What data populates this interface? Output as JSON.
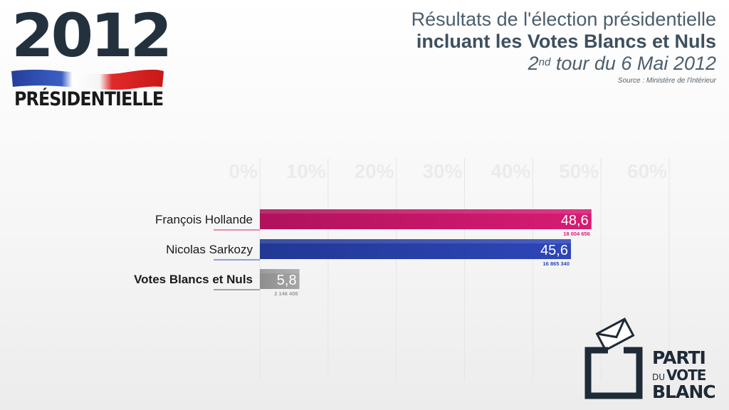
{
  "logo": {
    "year": "2012",
    "label": "PRÉSIDENTIELLE"
  },
  "title": {
    "line1": "Résultats de l'élection présidentielle",
    "line2": "incluant les Votes Blancs et Nuls",
    "line3_main": "2",
    "line3_sup": "nd",
    "line3_rest": " tour du 6 Mai 2012",
    "source": "Source : Ministère de l'Intérieur"
  },
  "colors": {
    "hollande": "#d81b74",
    "sarkozy": "#2e46b8",
    "blancs": "#a6a6a6",
    "brand": "#1e2a36"
  },
  "chart_data": {
    "type": "bar",
    "orientation": "horizontal",
    "xlim": [
      0,
      60
    ],
    "ticks": [
      "0%",
      "10%",
      "20%",
      "30%",
      "40%",
      "50%",
      "60%"
    ],
    "categories": [
      "François Hollande",
      "Nicolas Sarkozy",
      "Votes Blancs et Nuls"
    ],
    "values": [
      48.6,
      45.6,
      5.8
    ],
    "value_labels": [
      "48,6",
      "45,6",
      "5,8"
    ],
    "votes": [
      "18 004 656",
      "16 865 340",
      "2 146 408"
    ],
    "grid": true
  },
  "brand": {
    "line1": "PARTI",
    "line2_small": "DU",
    "line2": "VOTE",
    "line3": "BLANC"
  }
}
